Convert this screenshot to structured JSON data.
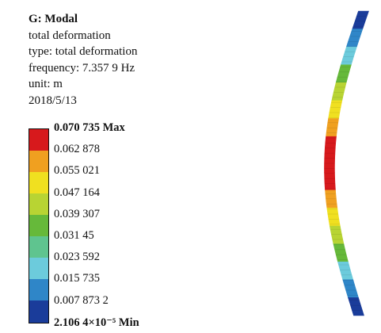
{
  "info": {
    "title": "G: Modal",
    "line1": "total deformation",
    "line2": "type: total deformation",
    "line3": "frequency: 7.357 9 Hz",
    "line4": "unit: m",
    "line5": "2018/5/13"
  },
  "legend": {
    "colors": [
      "#d7191c",
      "#f0a020",
      "#f0e020",
      "#b8d433",
      "#66b93a",
      "#5fc48f",
      "#6ccbdc",
      "#2f86c8",
      "#1a3c9a"
    ],
    "labels": [
      {
        "text": "0.070 735 Max",
        "bold": true
      },
      {
        "text": "0.062 878",
        "bold": false
      },
      {
        "text": "0.055 021",
        "bold": false
      },
      {
        "text": "0.047 164",
        "bold": false
      },
      {
        "text": "0.039 307",
        "bold": false
      },
      {
        "text": "0.031 45",
        "bold": false
      },
      {
        "text": "0.023 592",
        "bold": false
      },
      {
        "text": "0.015 735",
        "bold": false
      },
      {
        "text": "0.007 873 2",
        "bold": false
      },
      {
        "text": "2.106 4×10⁻⁵ Min",
        "bold": true
      }
    ]
  },
  "beam": {
    "segment_colors": [
      "#1a3c9a",
      "#2f86c8",
      "#6ccbdc",
      "#66b93a",
      "#b8d433",
      "#f0e020",
      "#f0a020",
      "#d7191c",
      "#d7191c",
      "#d7191c",
      "#f0a020",
      "#f0e020",
      "#b8d433",
      "#66b93a",
      "#6ccbdc",
      "#2f86c8",
      "#1a3c9a"
    ]
  }
}
